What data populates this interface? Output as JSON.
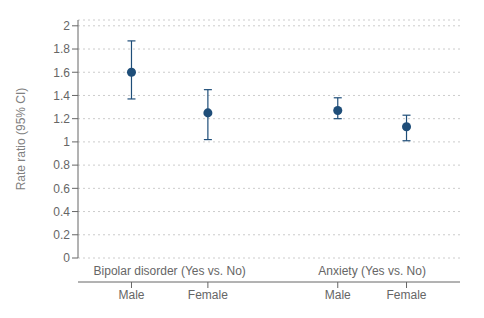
{
  "chart_data": {
    "type": "scatter",
    "ylabel": "Rate ratio (95% CI)",
    "x": [
      1,
      2,
      3.7,
      4.6
    ],
    "values": [
      1.6,
      1.25,
      1.27,
      1.13
    ],
    "lower": [
      1.37,
      1.02,
      1.2,
      1.01
    ],
    "upper": [
      1.87,
      1.45,
      1.38,
      1.23
    ],
    "color": "#1f4e79",
    "xlim": [
      0.3,
      5.3
    ],
    "xticks": [
      {
        "value": 1,
        "label": "Male"
      },
      {
        "value": 2,
        "label": "Female"
      },
      {
        "value": 3.7,
        "label": "Male"
      },
      {
        "value": 4.6,
        "label": "Female"
      }
    ],
    "ylim": [
      0,
      2.05
    ],
    "yticks": [
      0,
      0.2,
      0.4,
      0.6,
      0.8,
      1,
      1.2,
      1.4,
      1.6,
      1.8,
      2
    ],
    "grid": true,
    "annotations": [
      {
        "text": "Bipolar disorder (Yes vs. No)",
        "x": 1.5
      },
      {
        "text": "Anxiety (Yes vs. No)",
        "x": 4.15
      }
    ]
  }
}
